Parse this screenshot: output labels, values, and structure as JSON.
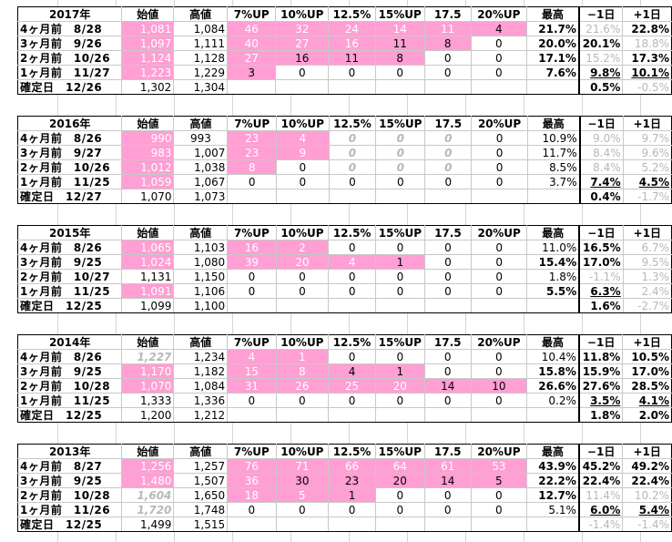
{
  "headers": [
    "始値",
    "高値",
    "7%UP",
    "10%UP",
    "12.5%",
    "15%UP",
    "17.5",
    "20%UP",
    "最高",
    "−1日",
    "+1日"
  ],
  "blocks": [
    {
      "year": "2017年",
      "rows": [
        {
          "label": "4ヶ月前　8/28",
          "cells": [
            "1,081",
            "1,084",
            "46",
            "32",
            "24",
            "14",
            "11",
            "4",
            "21.7%",
            "21.6%",
            "22.8%"
          ]
        },
        {
          "label": "3ヶ月前　9/26",
          "cells": [
            "1,097",
            "1,111",
            "40",
            "27",
            "16",
            "11",
            "8",
            "0",
            "20.0%",
            "20.1%",
            "18.8%"
          ]
        },
        {
          "label": "2ヶ月前　10/26",
          "cells": [
            "1,124",
            "1,128",
            "27",
            "16",
            "11",
            "8",
            "0",
            "0",
            "17.1%",
            "15.2%",
            "17.3%"
          ]
        },
        {
          "label": "1ヶ月前　11/27",
          "cells": [
            "1,223",
            "1,229",
            "3",
            "0",
            "0",
            "0",
            "0",
            "0",
            "7.6%",
            "9.8%",
            "10.1%"
          ]
        },
        {
          "label": "確定日　12/26",
          "cells": [
            "1,302",
            "1,304",
            "",
            "",
            "",
            "",
            "",
            "",
            "",
            "0.5%",
            "-0.5%"
          ]
        }
      ]
    },
    {
      "year": "2016年",
      "rows": [
        {
          "label": "4ヶ月前　8/26",
          "cells": [
            "990",
            "993",
            "23",
            "4",
            "0",
            "0",
            "0",
            "0",
            "10.9%",
            "9.0%",
            "9.7%"
          ]
        },
        {
          "label": "3ヶ月前　9/27",
          "cells": [
            "983",
            "1,007",
            "23",
            "9",
            "0",
            "0",
            "0",
            "0",
            "11.7%",
            "8.4%",
            "9.6%"
          ]
        },
        {
          "label": "2ヶ月前　10/26",
          "cells": [
            "1,012",
            "1,038",
            "8",
            "0",
            "0",
            "0",
            "0",
            "0",
            "8.5%",
            "8.4%",
            "5.2%"
          ]
        },
        {
          "label": "1ヶ月前　11/25",
          "cells": [
            "1,059",
            "1,067",
            "0",
            "0",
            "0",
            "0",
            "0",
            "0",
            "3.7%",
            "7.4%",
            "4.5%"
          ]
        },
        {
          "label": "確定日　12/27",
          "cells": [
            "1,070",
            "1,073",
            "",
            "",
            "",
            "",
            "",
            "",
            "",
            "0.4%",
            "-1.7%"
          ]
        }
      ]
    },
    {
      "year": "2015年",
      "rows": [
        {
          "label": "4ヶ月前　8/26",
          "cells": [
            "1,065",
            "1,103",
            "16",
            "2",
            "0",
            "0",
            "0",
            "0",
            "11.0%",
            "16.5%",
            "6.7%"
          ]
        },
        {
          "label": "3ヶ月前　9/25",
          "cells": [
            "1,024",
            "1,080",
            "39",
            "20",
            "4",
            "1",
            "0",
            "0",
            "15.4%",
            "17.0%",
            "9.5%"
          ]
        },
        {
          "label": "2ヶ月前　10/27",
          "cells": [
            "1,131",
            "1,150",
            "0",
            "0",
            "0",
            "0",
            "0",
            "0",
            "1.8%",
            "-1.1%",
            "1.3%"
          ]
        },
        {
          "label": "1ヶ月前　11/25",
          "cells": [
            "1,091",
            "1,106",
            "0",
            "0",
            "0",
            "0",
            "0",
            "0",
            "5.5%",
            "6.3%",
            "2.4%"
          ]
        },
        {
          "label": "確定日　12/25",
          "cells": [
            "1,099",
            "1,100",
            "",
            "",
            "",
            "",
            "",
            "",
            "",
            "1.6%",
            "-2.7%"
          ]
        }
      ]
    },
    {
      "year": "2014年",
      "rows": [
        {
          "label": "4ヶ月前　8/26",
          "cells": [
            "1,227",
            "1,234",
            "4",
            "1",
            "0",
            "0",
            "0",
            "0",
            "10.4%",
            "11.8%",
            "10.5%"
          ]
        },
        {
          "label": "3ヶ月前　9/25",
          "cells": [
            "1,170",
            "1,182",
            "15",
            "8",
            "4",
            "1",
            "0",
            "0",
            "15.8%",
            "15.9%",
            "17.0%"
          ]
        },
        {
          "label": "2ヶ月前　10/28",
          "cells": [
            "1,070",
            "1,084",
            "31",
            "26",
            "25",
            "20",
            "14",
            "10",
            "26.6%",
            "27.6%",
            "28.5%"
          ]
        },
        {
          "label": "1ヶ月前　11/25",
          "cells": [
            "1,333",
            "1,336",
            "0",
            "0",
            "0",
            "0",
            "0",
            "0",
            "0.2%",
            "3.5%",
            "4.1%"
          ]
        },
        {
          "label": "確定日　12/25",
          "cells": [
            "1,200",
            "1,212",
            "",
            "",
            "",
            "",
            "",
            "",
            "",
            "1.8%",
            "2.0%"
          ]
        }
      ]
    },
    {
      "year": "2013年",
      "rows": [
        {
          "label": "4ヶ月前　8/27",
          "cells": [
            "1,256",
            "1,257",
            "76",
            "71",
            "66",
            "64",
            "61",
            "53",
            "43.9%",
            "45.2%",
            "49.2%"
          ]
        },
        {
          "label": "3ヶ月前　9/25",
          "cells": [
            "1,480",
            "1,507",
            "36",
            "30",
            "23",
            "20",
            "14",
            "5",
            "22.2%",
            "22.4%",
            "22.4%"
          ]
        },
        {
          "label": "2ヶ月前　10/28",
          "cells": [
            "1,604",
            "1,650",
            "18",
            "5",
            "1",
            "0",
            "0",
            "0",
            "12.7%",
            "11.4%",
            "10.2%"
          ]
        },
        {
          "label": "1ヶ月前　11/26",
          "cells": [
            "1,720",
            "1,748",
            "0",
            "0",
            "0",
            "0",
            "0",
            "0",
            "5.1%",
            "6.0%",
            "5.4%"
          ]
        },
        {
          "label": "確定日　12/25",
          "cells": [
            "1,499",
            "1,515",
            "",
            "",
            "",
            "",
            "",
            "",
            "",
            "-1.4%",
            "-1.4%"
          ]
        }
      ]
    }
  ],
  "colors": {
    "highlight": "#ff9fd3",
    "muted_text": "#b8b8b8"
  }
}
